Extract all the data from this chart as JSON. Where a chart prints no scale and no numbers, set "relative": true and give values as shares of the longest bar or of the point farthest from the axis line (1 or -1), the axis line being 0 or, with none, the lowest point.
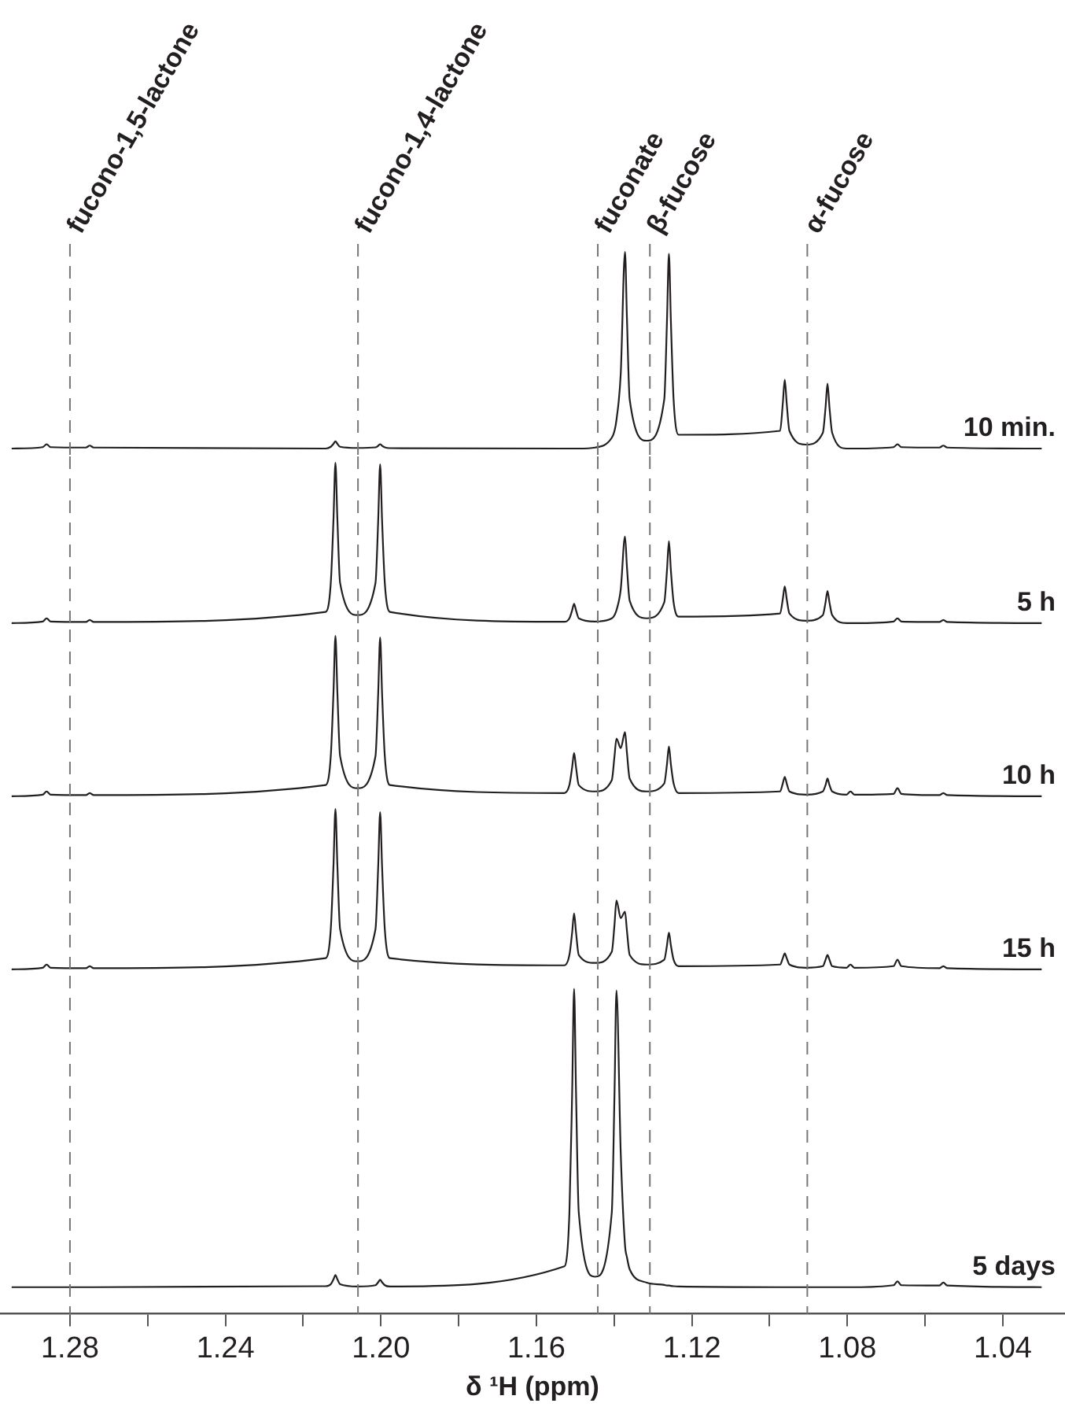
{
  "chart_data": [
    {
      "type": "line",
      "relative": true,
      "marker": "none",
      "tick_labels": false,
      "xlim": [
        1.298,
        1.024
      ],
      "x": [
        1.295,
        1.287,
        1.286,
        1.285,
        1.2759,
        1.2749,
        1.2739,
        1.2142,
        1.2129,
        1.2122,
        1.2117,
        1.2112,
        1.2105,
        1.206,
        1.2014,
        1.2007,
        1.2002,
        1.1997,
        1.199,
        1.1977,
        1.1528,
        1.1515,
        1.1508,
        1.1503,
        1.1498,
        1.1491,
        1.1449,
        1.1406,
        1.1399,
        1.1394,
        1.1383,
        1.1372,
        1.1367,
        1.136,
        1.1316,
        1.1271,
        1.1264,
        1.1259,
        1.1254,
        1.1247,
        1.1234,
        1.0973,
        1.0966,
        1.0961,
        1.0956,
        1.0949,
        1.0906,
        1.0863,
        1.0856,
        1.0851,
        1.0846,
        1.0839,
        1.0802,
        1.0792,
        1.0782,
        1.0681,
        1.0671,
        1.0661,
        1.0563,
        1.0553,
        1.0543,
        1.03
      ],
      "series": [
        {
          "name": "10 min.",
          "color": "#231f20",
          "values": [
            0,
            0.007,
            0.022,
            0.007,
            0.005,
            0.015,
            0.005,
            0,
            0.009,
            0.024,
            0.037,
            0.024,
            0.009,
            0.003,
            0.006,
            0.014,
            0.022,
            0.014,
            0.006,
            0.002,
            0,
            0,
            0,
            0,
            0,
            0,
            0.005,
            0.055,
            0.09,
            0.145,
            0.38,
            1,
            0.66,
            0.25,
            0.04,
            0.25,
            0.65,
            0.99,
            0.65,
            0.25,
            0.07,
            0.09,
            0.23,
            0.35,
            0.23,
            0.09,
            0.02,
            0.08,
            0.21,
            0.33,
            0.21,
            0.08,
            0,
            0,
            0,
            0.007,
            0.022,
            0.007,
            0.005,
            0.015,
            0.005,
            0
          ]
        }
      ],
      "ref_lines": [
        {
          "axis": "x",
          "value": 1.28,
          "label": "fucono-1,5-lactone",
          "color": "#777777",
          "line_style": "dashed"
        },
        {
          "axis": "x",
          "value": 1.2059,
          "label": "fucono-1,4-lactone",
          "color": "#777777",
          "line_style": "dashed"
        },
        {
          "axis": "x",
          "value": 1.1442,
          "label": "fuconate",
          "color": "#777777",
          "line_style": "dashed"
        },
        {
          "axis": "x",
          "value": 1.1308,
          "label": "β-fucose",
          "color": "#777777",
          "line_style": "dashed"
        },
        {
          "axis": "x",
          "value": 1.0903,
          "label": "α-fucose",
          "color": "#777777",
          "line_style": "dashed"
        }
      ]
    },
    {
      "type": "line",
      "relative": true,
      "marker": "none",
      "tick_labels": false,
      "xlim": [
        1.298,
        1.024
      ],
      "x": [
        1.295,
        1.287,
        1.286,
        1.285,
        1.2759,
        1.2749,
        1.2739,
        1.2142,
        1.2129,
        1.2122,
        1.2117,
        1.2112,
        1.2105,
        1.206,
        1.2014,
        1.2007,
        1.2002,
        1.1997,
        1.199,
        1.1977,
        1.1528,
        1.1515,
        1.1508,
        1.1503,
        1.1498,
        1.1491,
        1.1449,
        1.1406,
        1.1399,
        1.1394,
        1.1383,
        1.1372,
        1.1367,
        1.136,
        1.1316,
        1.1271,
        1.1264,
        1.1259,
        1.1254,
        1.1247,
        1.1234,
        1.0973,
        1.0966,
        1.0961,
        1.0956,
        1.0949,
        1.0906,
        1.0863,
        1.0856,
        1.0851,
        1.0846,
        1.0839,
        1.0802,
        1.0792,
        1.0782,
        1.0681,
        1.0671,
        1.0661,
        1.0563,
        1.0553,
        1.0543,
        1.03
      ],
      "series": [
        {
          "name": "5 h",
          "color": "#231f20",
          "values": [
            0,
            0.01,
            0.03,
            0.01,
            0.007,
            0.02,
            0.007,
            0.07,
            0.25,
            0.65,
            1,
            0.65,
            0.25,
            0.05,
            0.25,
            0.64,
            0.99,
            0.64,
            0.25,
            0.07,
            0.008,
            0.03,
            0.08,
            0.12,
            0.08,
            0.03,
            0.01,
            0.03,
            0.05,
            0.08,
            0.21,
            0.54,
            0.35,
            0.14,
            0.03,
            0.13,
            0.33,
            0.51,
            0.33,
            0.13,
            0.04,
            0.06,
            0.15,
            0.23,
            0.15,
            0.06,
            0.015,
            0.05,
            0.13,
            0.2,
            0.13,
            0.05,
            0,
            0,
            0,
            0.01,
            0.03,
            0.01,
            0.007,
            0.02,
            0.007,
            0
          ]
        }
      ],
      "ref_lines": [
        {
          "axis": "x",
          "value": 1.28,
          "color": "#777777",
          "line_style": "dashed"
        },
        {
          "axis": "x",
          "value": 1.2059,
          "color": "#777777",
          "line_style": "dashed"
        },
        {
          "axis": "x",
          "value": 1.1442,
          "color": "#777777",
          "line_style": "dashed"
        },
        {
          "axis": "x",
          "value": 1.1308,
          "color": "#777777",
          "line_style": "dashed"
        },
        {
          "axis": "x",
          "value": 1.0903,
          "color": "#777777",
          "line_style": "dashed"
        }
      ]
    },
    {
      "type": "line",
      "relative": true,
      "marker": "none",
      "tick_labels": false,
      "xlim": [
        1.298,
        1.024
      ],
      "x": [
        1.295,
        1.287,
        1.286,
        1.285,
        1.2759,
        1.2749,
        1.2739,
        1.2142,
        1.2129,
        1.2122,
        1.2117,
        1.2112,
        1.2105,
        1.206,
        1.2014,
        1.2007,
        1.2002,
        1.1997,
        1.199,
        1.1977,
        1.1528,
        1.1515,
        1.1508,
        1.1503,
        1.1498,
        1.1491,
        1.1449,
        1.1406,
        1.1399,
        1.1394,
        1.1383,
        1.1372,
        1.1367,
        1.136,
        1.1316,
        1.1271,
        1.1264,
        1.1259,
        1.1254,
        1.1247,
        1.1234,
        1.0973,
        1.0966,
        1.0961,
        1.0956,
        1.0949,
        1.0906,
        1.0863,
        1.0856,
        1.0851,
        1.0846,
        1.0839,
        1.0802,
        1.0792,
        1.0782,
        1.0681,
        1.0671,
        1.0661,
        1.0563,
        1.0553,
        1.0543,
        1.03
      ],
      "series": [
        {
          "name": "10 h",
          "color": "#231f20",
          "values": [
            0,
            0.01,
            0.03,
            0.01,
            0.007,
            0.02,
            0.007,
            0.07,
            0.25,
            0.65,
            1,
            0.65,
            0.25,
            0.05,
            0.25,
            0.64,
            0.99,
            0.64,
            0.25,
            0.07,
            0.02,
            0.07,
            0.18,
            0.27,
            0.18,
            0.07,
            0.03,
            0.1,
            0.25,
            0.36,
            0.3,
            0.4,
            0.27,
            0.11,
            0.03,
            0.08,
            0.2,
            0.31,
            0.2,
            0.08,
            0.02,
            0.03,
            0.08,
            0.12,
            0.08,
            0.03,
            0.01,
            0.03,
            0.07,
            0.11,
            0.07,
            0.03,
            0.01,
            0.03,
            0.01,
            0.015,
            0.05,
            0.015,
            0.007,
            0.02,
            0.007,
            0
          ]
        }
      ],
      "ref_lines": [
        {
          "axis": "x",
          "value": 1.28,
          "color": "#777777",
          "line_style": "dashed"
        },
        {
          "axis": "x",
          "value": 1.2059,
          "color": "#777777",
          "line_style": "dashed"
        },
        {
          "axis": "x",
          "value": 1.1442,
          "color": "#777777",
          "line_style": "dashed"
        },
        {
          "axis": "x",
          "value": 1.1308,
          "color": "#777777",
          "line_style": "dashed"
        },
        {
          "axis": "x",
          "value": 1.0903,
          "color": "#777777",
          "line_style": "dashed"
        }
      ]
    },
    {
      "type": "line",
      "relative": true,
      "marker": "none",
      "tick_labels": false,
      "xlim": [
        1.298,
        1.024
      ],
      "x": [
        1.295,
        1.287,
        1.286,
        1.285,
        1.2759,
        1.2749,
        1.2739,
        1.2142,
        1.2129,
        1.2122,
        1.2117,
        1.2112,
        1.2105,
        1.206,
        1.2014,
        1.2007,
        1.2002,
        1.1997,
        1.199,
        1.1977,
        1.1528,
        1.1515,
        1.1508,
        1.1503,
        1.1498,
        1.1491,
        1.1449,
        1.1406,
        1.1399,
        1.1394,
        1.1383,
        1.1372,
        1.1367,
        1.136,
        1.1316,
        1.1271,
        1.1264,
        1.1259,
        1.1254,
        1.1247,
        1.1234,
        1.0973,
        1.0966,
        1.0961,
        1.0956,
        1.0949,
        1.0906,
        1.0863,
        1.0856,
        1.0851,
        1.0846,
        1.0839,
        1.0802,
        1.0792,
        1.0782,
        1.0681,
        1.0671,
        1.0661,
        1.0563,
        1.0553,
        1.0543,
        1.03
      ],
      "series": [
        {
          "name": "15 h",
          "color": "#231f20",
          "values": [
            0,
            0.01,
            0.03,
            0.01,
            0.007,
            0.02,
            0.007,
            0.07,
            0.25,
            0.65,
            1,
            0.65,
            0.25,
            0.05,
            0.25,
            0.64,
            0.98,
            0.64,
            0.25,
            0.07,
            0.025,
            0.09,
            0.23,
            0.35,
            0.23,
            0.09,
            0.04,
            0.11,
            0.28,
            0.43,
            0.32,
            0.36,
            0.24,
            0.09,
            0.03,
            0.06,
            0.15,
            0.23,
            0.15,
            0.06,
            0.02,
            0.03,
            0.07,
            0.1,
            0.07,
            0.03,
            0.01,
            0.02,
            0.06,
            0.09,
            0.06,
            0.02,
            0.01,
            0.03,
            0.01,
            0.02,
            0.06,
            0.02,
            0.007,
            0.02,
            0.007,
            0
          ]
        }
      ],
      "ref_lines": [
        {
          "axis": "x",
          "value": 1.28,
          "color": "#777777",
          "line_style": "dashed"
        },
        {
          "axis": "x",
          "value": 1.2059,
          "color": "#777777",
          "line_style": "dashed"
        },
        {
          "axis": "x",
          "value": 1.1442,
          "color": "#777777",
          "line_style": "dashed"
        },
        {
          "axis": "x",
          "value": 1.1308,
          "color": "#777777",
          "line_style": "dashed"
        },
        {
          "axis": "x",
          "value": 1.0903,
          "color": "#777777",
          "line_style": "dashed"
        }
      ]
    },
    {
      "type": "line",
      "relative": true,
      "marker": "none",
      "tick_labels": "x",
      "xlabel": "δ ¹H (ppm)",
      "xlim": [
        1.298,
        1.024
      ],
      "xticks": [
        1.28,
        {
          "value": 1.26,
          "label": null
        },
        1.24,
        {
          "value": 1.22,
          "label": null
        },
        {
          "value": 1.2,
          "label": "1.20"
        },
        {
          "value": 1.18,
          "label": null
        },
        1.16,
        {
          "value": 1.14,
          "label": null
        },
        1.12,
        {
          "value": 1.1,
          "label": null
        },
        1.08,
        {
          "value": 1.06,
          "label": null
        },
        1.04
      ],
      "x": [
        1.295,
        1.287,
        1.286,
        1.285,
        1.2759,
        1.2749,
        1.2739,
        1.2142,
        1.2129,
        1.2122,
        1.2117,
        1.2112,
        1.2105,
        1.206,
        1.2014,
        1.2007,
        1.2002,
        1.1997,
        1.199,
        1.1977,
        1.1528,
        1.1515,
        1.1508,
        1.1503,
        1.1498,
        1.1491,
        1.1449,
        1.1406,
        1.1399,
        1.1394,
        1.1383,
        1.1372,
        1.1367,
        1.136,
        1.1316,
        1.1271,
        1.1264,
        1.1259,
        1.1254,
        1.1247,
        1.1234,
        1.0973,
        1.0966,
        1.0961,
        1.0956,
        1.0949,
        1.0906,
        1.0863,
        1.0856,
        1.0851,
        1.0846,
        1.0839,
        1.0802,
        1.0792,
        1.0782,
        1.0681,
        1.0671,
        1.0661,
        1.0563,
        1.0553,
        1.0543,
        1.03
      ],
      "series": [
        {
          "name": "5 days",
          "color": "#231f20",
          "values": [
            0.082,
            0.082,
            0.082,
            0.082,
            0.082,
            0.082,
            0.082,
            0.085,
            0.091,
            0.106,
            0.119,
            0.106,
            0.091,
            0.084,
            0.088,
            0.097,
            0.105,
            0.097,
            0.088,
            0.084,
            0.146,
            0.312,
            0.679,
            1,
            0.679,
            0.312,
            0.114,
            0.312,
            0.679,
            0.995,
            0.495,
            0.211,
            0.174,
            0.137,
            0.096,
            0.089,
            0.087,
            0.087,
            0.086,
            0.085,
            0.084,
            0.082,
            0.082,
            0.082,
            0.082,
            0.082,
            0.082,
            0.082,
            0.082,
            0.082,
            0.082,
            0.082,
            0.082,
            0.082,
            0.082,
            0.088,
            0.1,
            0.088,
            0.087,
            0.096,
            0.087,
            0.082
          ]
        }
      ],
      "ref_lines": [
        {
          "axis": "x",
          "value": 1.28,
          "color": "#777777",
          "line_style": "dashed"
        },
        {
          "axis": "x",
          "value": 1.2059,
          "color": "#777777",
          "line_style": "dashed"
        },
        {
          "axis": "x",
          "value": 1.1442,
          "color": "#777777",
          "line_style": "dashed"
        },
        {
          "axis": "x",
          "value": 1.1308,
          "color": "#777777",
          "line_style": "dashed"
        },
        {
          "axis": "x",
          "value": 1.0903,
          "color": "#777777",
          "line_style": "dashed"
        }
      ]
    }
  ]
}
